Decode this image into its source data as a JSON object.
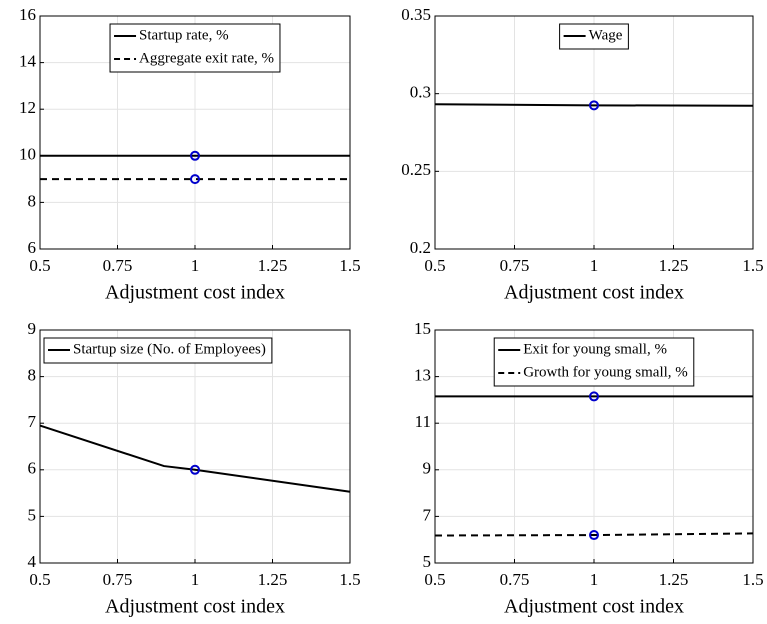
{
  "chart_data": [
    {
      "type": "line",
      "xlabel": "Adjustment cost index",
      "xlim": [
        0.5,
        1.5
      ],
      "xticks": [
        0.5,
        0.75,
        1,
        1.25,
        1.5
      ],
      "ylim": [
        6,
        16
      ],
      "yticks": [
        6,
        8,
        10,
        12,
        14,
        16
      ],
      "grid": true,
      "legend": "north",
      "series": [
        {
          "name": "Startup rate, %",
          "color": "#000000",
          "dash": false,
          "x": [
            0.5,
            1,
            1.5
          ],
          "values": [
            10,
            10,
            10
          ]
        },
        {
          "name": "Aggregate exit rate, %",
          "color": "#000000",
          "dash": true,
          "x": [
            0.5,
            1,
            1.5
          ],
          "values": [
            9,
            9,
            9
          ]
        }
      ],
      "markers": {
        "color": "#0000cc",
        "x": [
          1,
          1
        ],
        "values": [
          10,
          9
        ]
      }
    },
    {
      "type": "line",
      "xlabel": "Adjustment cost index",
      "xlim": [
        0.5,
        1.5
      ],
      "xticks": [
        0.5,
        0.75,
        1,
        1.25,
        1.5
      ],
      "ylim": [
        0.2,
        0.35
      ],
      "yticks": [
        0.2,
        0.25,
        0.3,
        0.35
      ],
      "grid": true,
      "legend": "north",
      "series": [
        {
          "name": "Wage",
          "color": "#000000",
          "dash": false,
          "x": [
            0.5,
            1,
            1.5
          ],
          "values": [
            0.2932,
            0.2925,
            0.2922
          ]
        }
      ],
      "markers": {
        "color": "#0000cc",
        "x": [
          1
        ],
        "values": [
          0.2925
        ]
      }
    },
    {
      "type": "line",
      "xlabel": "Adjustment cost index",
      "xlim": [
        0.5,
        1.5
      ],
      "xticks": [
        0.5,
        0.75,
        1,
        1.25,
        1.5
      ],
      "ylim": [
        4,
        9
      ],
      "yticks": [
        4,
        5,
        6,
        7,
        8,
        9
      ],
      "grid": true,
      "legend": "northwest",
      "series": [
        {
          "name": "Startup size (No. of Employees)",
          "color": "#000000",
          "dash": false,
          "x": [
            0.5,
            0.9,
            1,
            1.5
          ],
          "values": [
            6.95,
            6.08,
            6.0,
            5.53
          ]
        }
      ],
      "markers": {
        "color": "#0000cc",
        "x": [
          1
        ],
        "values": [
          6.0
        ]
      }
    },
    {
      "type": "line",
      "xlabel": "Adjustment cost index",
      "xlim": [
        0.5,
        1.5
      ],
      "xticks": [
        0.5,
        0.75,
        1,
        1.25,
        1.5
      ],
      "ylim": [
        5,
        15
      ],
      "yticks": [
        5,
        7,
        9,
        11,
        13,
        15
      ],
      "grid": true,
      "legend": "north",
      "series": [
        {
          "name": "Exit for young small, %",
          "color": "#000000",
          "dash": false,
          "x": [
            0.5,
            1,
            1.5
          ],
          "values": [
            12.15,
            12.15,
            12.15
          ]
        },
        {
          "name": "Growth for young small, %",
          "color": "#000000",
          "dash": true,
          "x": [
            0.5,
            1,
            1.5
          ],
          "values": [
            6.18,
            6.2,
            6.27
          ]
        }
      ],
      "markers": {
        "color": "#0000cc",
        "x": [
          1,
          1
        ],
        "values": [
          12.15,
          6.2
        ]
      }
    }
  ]
}
